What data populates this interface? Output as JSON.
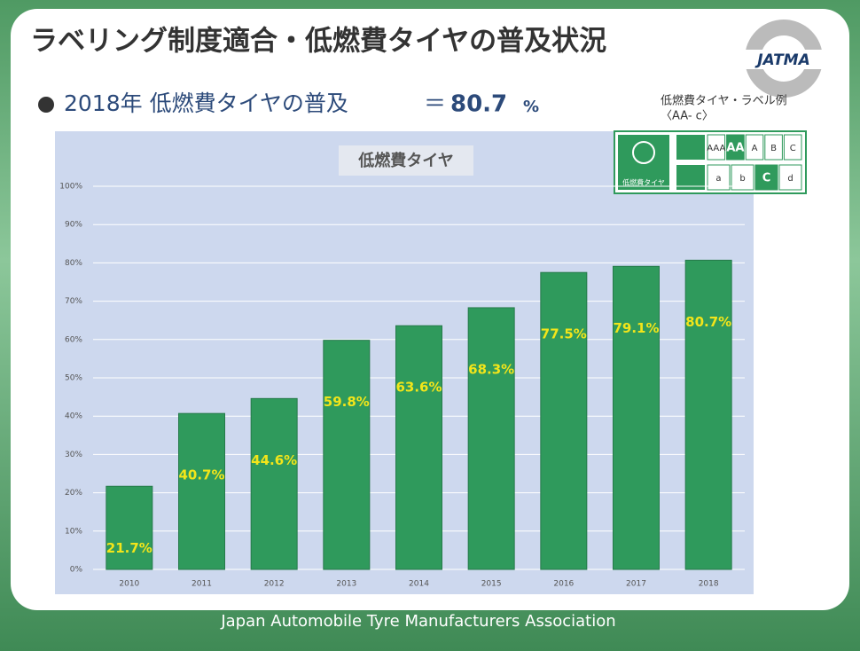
{
  "header": {
    "title": "ラベリング制度適合・低燃費タイヤの普及状況",
    "headline": "2018年 低燃費タイヤの普及",
    "equals": "＝",
    "headline_value": "80.7",
    "headline_unit": "%",
    "logo": "JATMA"
  },
  "label_example": {
    "caption": "低燃費タイヤ・ラベル例",
    "code": "〈AA- c〉",
    "icon_text": "低燃費タイヤ",
    "rolling_grades": [
      "AAA",
      "AA",
      "A",
      "B",
      "C"
    ],
    "rolling_highlight": 1,
    "wet_grades": [
      "a",
      "b",
      "C",
      "d"
    ],
    "wet_highlight": 2
  },
  "chart_data": {
    "type": "bar",
    "title": "低燃費タイヤ",
    "categories": [
      "2010",
      "2011",
      "2012",
      "2013",
      "2014",
      "2015",
      "2016",
      "2017",
      "2018"
    ],
    "values": [
      21.7,
      40.7,
      44.6,
      59.8,
      63.6,
      68.3,
      77.5,
      79.1,
      80.7
    ],
    "value_labels": [
      "21.7%",
      "40.7%",
      "44.6%",
      "59.8%",
      "63.6%",
      "68.3%",
      "77.5%",
      "79.1%",
      "80.7%"
    ],
    "color": "#2f9a5c",
    "ylim": [
      0,
      100
    ],
    "yticks": [
      {
        "value": 0,
        "label": "0%"
      },
      {
        "value": 10,
        "label": "10%"
      },
      {
        "value": 20,
        "label": "20%"
      },
      {
        "value": 30,
        "label": "30%"
      },
      {
        "value": 40,
        "label": "40%"
      },
      {
        "value": 50,
        "label": "50%"
      },
      {
        "value": 60,
        "label": "60%"
      },
      {
        "value": 70,
        "label": "70%"
      },
      {
        "value": 80,
        "label": "80%"
      },
      {
        "value": 90,
        "label": "90%"
      },
      {
        "value": 100,
        "label": "100%"
      }
    ],
    "grid": true
  },
  "footer": "Japan Automobile Tyre Manufacturers Association"
}
